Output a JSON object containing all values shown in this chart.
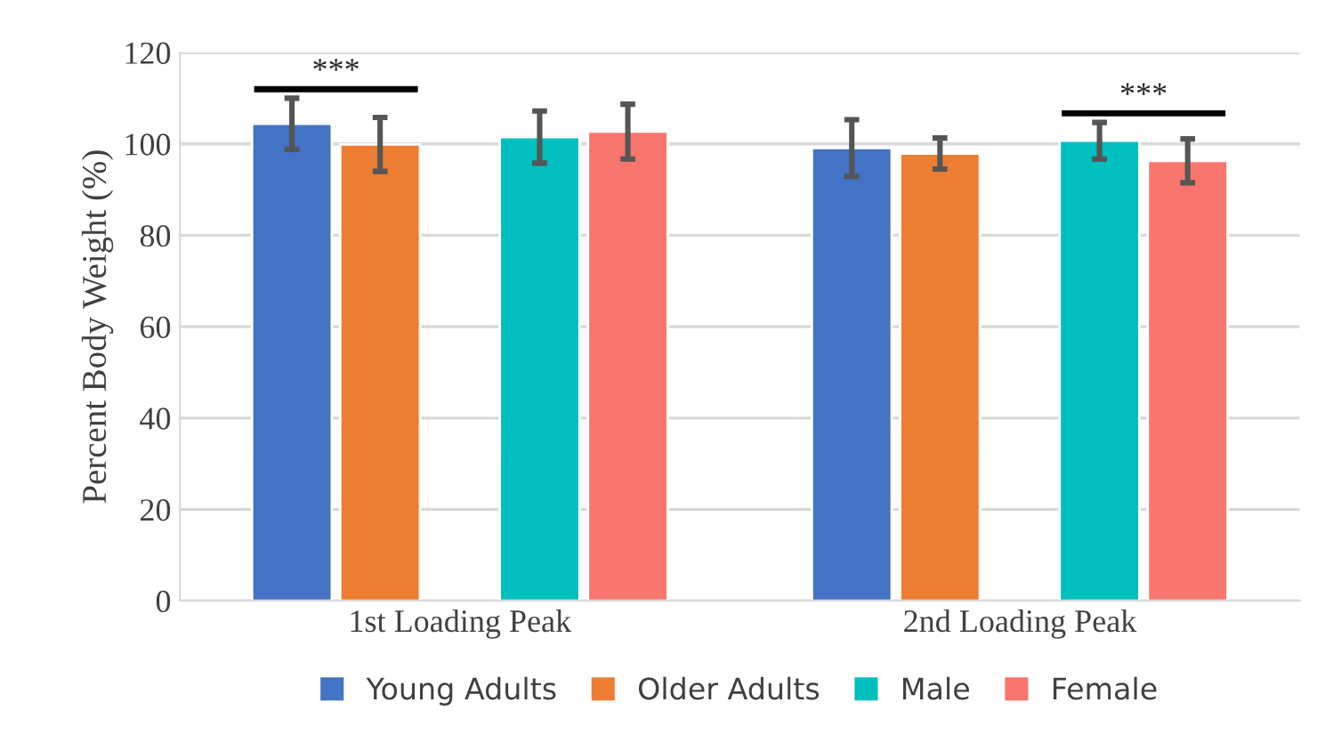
{
  "chart_data": {
    "type": "bar",
    "ylabel": "Percent Body Weight (%)",
    "categories": [
      "1st Loading Peak",
      "2nd Loading Peak"
    ],
    "series": [
      {
        "name": "Young Adults",
        "color": "#4472c4",
        "values": [
          104.4,
          99.1
        ],
        "errors": [
          5.6,
          6.2
        ]
      },
      {
        "name": "Older Adults",
        "color": "#ed7d31",
        "values": [
          99.9,
          97.9
        ],
        "errors": [
          5.9,
          3.4
        ]
      },
      {
        "name": "Male",
        "color": "#00bfbf",
        "values": [
          101.5,
          100.7
        ],
        "errors": [
          5.7,
          4.0
        ]
      },
      {
        "name": "Female",
        "color": "#f8766d",
        "values": [
          102.7,
          96.3
        ],
        "errors": [
          6.0,
          4.8
        ]
      }
    ],
    "ylim": [
      0,
      120
    ],
    "yticks": [
      0,
      20,
      40,
      60,
      80,
      100,
      120
    ],
    "grid": "y",
    "legend": "bottom",
    "annotations": [
      "***",
      "***"
    ]
  }
}
